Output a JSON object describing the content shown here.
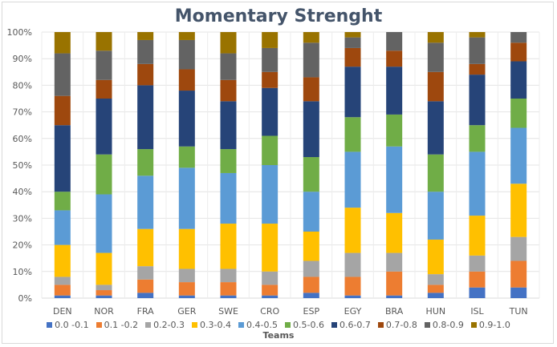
{
  "chart_data": {
    "type": "bar",
    "stacked": "percent",
    "title": "Momentary Strenght",
    "xlabel": "Teams",
    "ylabel": "",
    "ylim": [
      0,
      100
    ],
    "yticks": [
      "0%",
      "10%",
      "20%",
      "30%",
      "40%",
      "50%",
      "60%",
      "70%",
      "80%",
      "90%",
      "100%"
    ],
    "grid": true,
    "legend_position": "bottom",
    "categories": [
      "DEN",
      "NOR",
      "FRA",
      "GER",
      "SWE",
      "CRO",
      "ESP",
      "EGY",
      "BRA",
      "HUN",
      "ISL",
      "TUN"
    ],
    "series": [
      {
        "name": "0.0 -0.1",
        "color": "#4472c4",
        "values": [
          1,
          1,
          2,
          1,
          1,
          1,
          2,
          1,
          1,
          2,
          4,
          4
        ]
      },
      {
        "name": "0.1 -0.2",
        "color": "#ed7d31",
        "values": [
          4,
          2,
          5,
          5,
          5,
          4,
          6,
          7,
          9,
          3,
          6,
          10
        ]
      },
      {
        "name": "0.2-0.3",
        "color": "#a5a5a5",
        "values": [
          3,
          2,
          5,
          5,
          5,
          5,
          6,
          9,
          7,
          4,
          6,
          9
        ]
      },
      {
        "name": "0.3-0.4",
        "color": "#ffc000",
        "values": [
          12,
          12,
          14,
          15,
          17,
          18,
          11,
          17,
          15,
          13,
          15,
          20
        ]
      },
      {
        "name": "0.4-0.5",
        "color": "#5b9bd5",
        "values": [
          13,
          22,
          20,
          23,
          19,
          22,
          15,
          21,
          25,
          18,
          24,
          21
        ]
      },
      {
        "name": "0.5-0.6",
        "color": "#70ad47",
        "values": [
          7,
          15,
          10,
          8,
          9,
          11,
          13,
          13,
          12,
          14,
          10,
          11
        ]
      },
      {
        "name": "0.6-0.7",
        "color": "#264478",
        "values": [
          25,
          21,
          24,
          21,
          18,
          18,
          21,
          19,
          18,
          20,
          19,
          14
        ]
      },
      {
        "name": "0.7-0.8",
        "color": "#9e480e",
        "values": [
          11,
          7,
          8,
          8,
          8,
          6,
          9,
          7,
          6,
          11,
          4,
          7
        ]
      },
      {
        "name": "0.8-0.9",
        "color": "#636363",
        "values": [
          16,
          11,
          9,
          11,
          10,
          9,
          13,
          4,
          7,
          11,
          10,
          4
        ]
      },
      {
        "name": "0.9-1.0",
        "color": "#997300",
        "values": [
          8,
          7,
          3,
          3,
          8,
          6,
          4,
          2,
          0,
          4,
          2,
          0
        ]
      }
    ]
  }
}
